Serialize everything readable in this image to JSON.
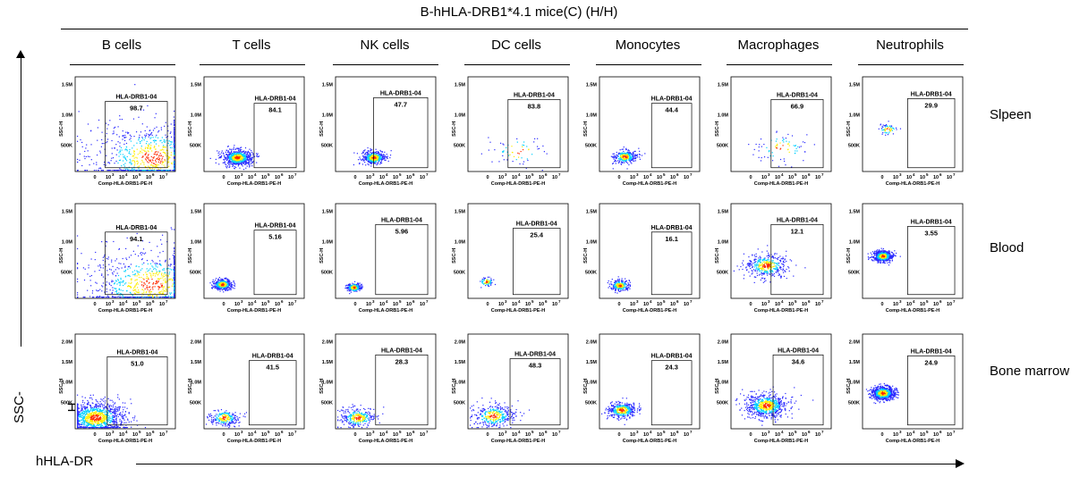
{
  "figure": {
    "title": "B-hHLA-DRB1*4.1 mice(C) (H/H)",
    "x_axis_label": "hHLA-DR",
    "y_axis_label": "SSC-H"
  },
  "chart_data": {
    "type": "scatter",
    "subtype": "flow-cytometry-density-grid",
    "title": "B-hHLA-DRB1*4.1 mice(C) (H/H)",
    "columns": [
      "B cells",
      "T cells",
      "NK cells",
      "DC cells",
      "Monocytes",
      "Macrophages",
      "Neutrophils"
    ],
    "rows": [
      "Slpeen",
      "Blood",
      "Bone marrow"
    ],
    "gate_name": "HLA-DRB1-04",
    "panel_xlabel": "Comp-HLA-DRB1-PE-H",
    "panel_ylabel": "SSC-H",
    "x_tick_labels": [
      "0",
      "10",
      "10",
      "10",
      "10",
      "10"
    ],
    "x_tick_exponents": [
      "",
      "3",
      "4",
      "5",
      "6",
      "7"
    ],
    "y_ticks_short": [
      "500K",
      "1.0M",
      "1.5M"
    ],
    "y_ticks_tall": [
      "500K",
      "1.0M",
      "1.5M",
      "2.0M"
    ],
    "gate_percentages": {
      "Slpeen": [
        98.7,
        84.1,
        47.7,
        83.8,
        44.4,
        66.9,
        29.9
      ],
      "Blood": [
        94.1,
        5.16,
        5.96,
        25.4,
        16.1,
        12.1,
        3.55
      ],
      "Bone marrow": [
        51.0,
        41.5,
        28.3,
        48.3,
        24.3,
        34.6,
        24.9
      ]
    },
    "gate_labels_text": {
      "Slpeen": [
        "98.7",
        "84.1",
        "47.7",
        "83.8",
        "44.4",
        "66.9",
        "29.9"
      ],
      "Blood": [
        "94.1",
        "5.16",
        "5.96",
        "25.4",
        "16.1",
        "12.1",
        "3.55"
      ],
      "Bone marrow": [
        "51.0",
        "41.5",
        "28.3",
        "48.3",
        "24.3",
        "34.6",
        "24.9"
      ]
    },
    "colors": {
      "low_density": "#2a2aff",
      "mid_density": "#00d0ff",
      "high_density": "#ffee00",
      "peak_density": "#ff2a00",
      "gate_stroke": "#000000"
    }
  }
}
